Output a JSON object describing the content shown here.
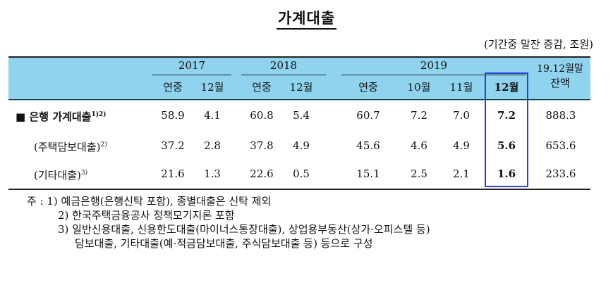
{
  "title": "가계대출",
  "unit": "(기간중 말잔 증감, 조원)",
  "header": {
    "year_2017": "2017",
    "year_2018": "2018",
    "year_2019": "2019",
    "balance_line1": "19.12월말",
    "balance_line2": "잔액",
    "sub": [
      "연중",
      "12월",
      "연중",
      "12월",
      "연중",
      "10월",
      "11월",
      "12월"
    ]
  },
  "rows": [
    {
      "bullet": "■",
      "label": "은행 가계대출",
      "sup": "1)2)",
      "values": [
        "58.9",
        "4.1",
        "60.8",
        "5.4",
        "60.7",
        "7.2",
        "7.0",
        "7.2",
        "888.3"
      ]
    },
    {
      "label": "(주택담보대출)",
      "sup": "2)",
      "values": [
        "37.2",
        "2.8",
        "37.8",
        "4.9",
        "45.6",
        "4.6",
        "4.9",
        "5.6",
        "653.6"
      ]
    },
    {
      "label": "(기타대출)",
      "sup": "3)",
      "values": [
        "21.6",
        "1.3",
        "22.6",
        "0.5",
        "15.1",
        "2.5",
        "2.1",
        "1.6",
        "233.6"
      ]
    }
  ],
  "notes": {
    "n1": "주 : 1)  예금은행(은행신탁 포함), 종별대출은 신탁 제외",
    "n2": "2)  한국주택금융공사 정책모기지론 포함",
    "n3": "3)  일반신용대출, 신용한도대출(마이너스통장대출), 상업용부동산(상가·오피스텔 등)",
    "n3b": "담보대출, 기타대출(예·적금담보대출, 주식담보대출 등) 등으로 구성"
  },
  "colors": {
    "header_bg": "#8fd3ee",
    "highlight_border": "#2a3fd6"
  }
}
